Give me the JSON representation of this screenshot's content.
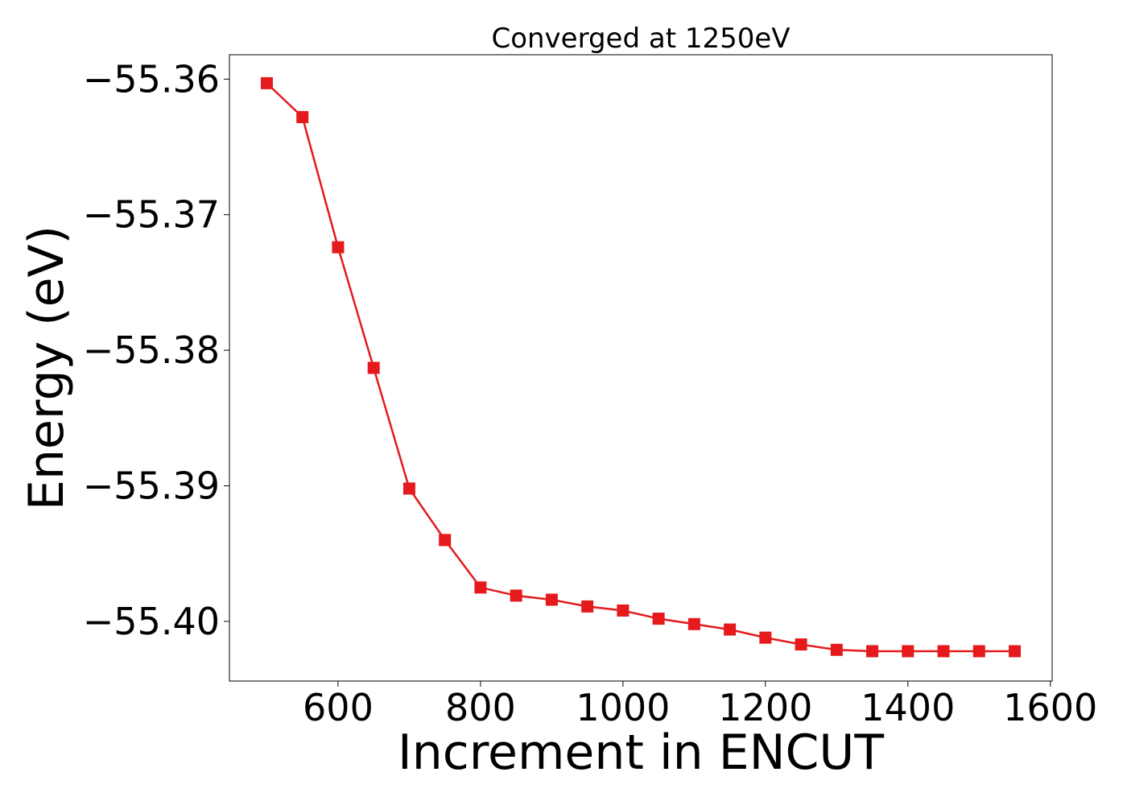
{
  "chart_data": {
    "type": "line",
    "title": "Converged at 1250eV",
    "xlabel": "Increment in ENCUT",
    "ylabel": "Energy (eV)",
    "xlim": [
      447.5,
      1602.5
    ],
    "ylim": [
      -55.4044,
      -55.3582
    ],
    "x_ticks": [
      600,
      800,
      1000,
      1200,
      1400,
      1600
    ],
    "y_ticks": [
      -55.36,
      -55.37,
      -55.38,
      -55.39,
      -55.4
    ],
    "x_tick_labels": [
      "600",
      "800",
      "1000",
      "1200",
      "1400",
      "1600"
    ],
    "y_tick_labels": [
      "−55.36",
      "−55.37",
      "−55.38",
      "−55.39",
      "−55.40"
    ],
    "grid": false,
    "legend": false,
    "series": [
      {
        "color": "#e41a1c",
        "marker": "square",
        "x": [
          500,
          550,
          600,
          650,
          700,
          750,
          800,
          850,
          900,
          950,
          1000,
          1050,
          1100,
          1150,
          1200,
          1250,
          1300,
          1350,
          1400,
          1450,
          1500,
          1550
        ],
        "y": [
          -55.3603,
          -55.3628,
          -55.3724,
          -55.3813,
          -55.3902,
          -55.394,
          -55.3975,
          -55.3981,
          -55.3984,
          -55.3989,
          -55.3992,
          -55.3998,
          -55.4002,
          -55.4006,
          -55.4012,
          -55.4017,
          -55.4021,
          -55.4022,
          -55.4022,
          -55.4022,
          -55.4022,
          -55.4022
        ]
      }
    ]
  }
}
